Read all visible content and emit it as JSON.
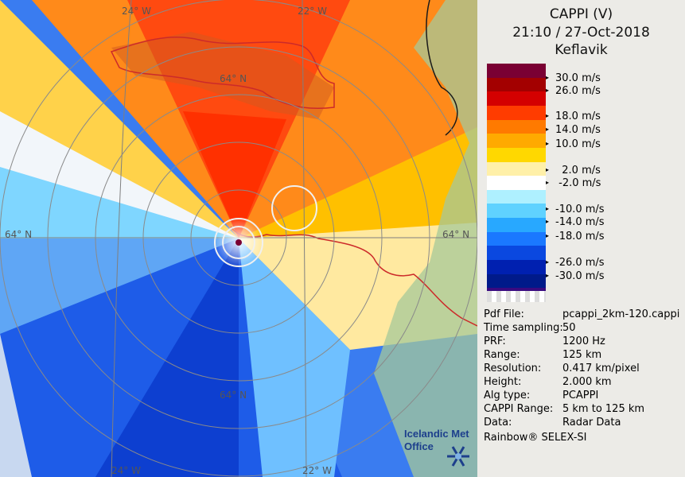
{
  "header": {
    "product": "CAPPI (V)",
    "datetime": "21:10 / 27-Oct-2018",
    "station": "Keflavik"
  },
  "map": {
    "grid_labels": [
      "24° W",
      "22° W",
      "64° N",
      "64° N",
      "64° N",
      "24° W",
      "22° W",
      "64° N"
    ],
    "range_rings_km": [
      25,
      50,
      75,
      100,
      125
    ],
    "radar_center": "Keflavik"
  },
  "scale": {
    "unit": "m/s",
    "bands": [
      {
        "color": "#7a0033"
      },
      {
        "color": "#a30000"
      },
      {
        "color": "#d40000"
      },
      {
        "color": "#ff3c00"
      },
      {
        "color": "#ff7a00"
      },
      {
        "color": "#ffaa00"
      },
      {
        "color": "#ffd800"
      },
      {
        "color": "#fff0a8"
      },
      {
        "color": "#ffffff"
      },
      {
        "color": "#aef0ff"
      },
      {
        "color": "#5fd2ff"
      },
      {
        "color": "#28a8ff"
      },
      {
        "color": "#1a78ff"
      },
      {
        "color": "#0a48e0"
      },
      {
        "color": "#0020b0"
      },
      {
        "color": "#001a8a"
      },
      {
        "color": "#3a0a80"
      }
    ],
    "labels": [
      "30.0 m/s",
      "26.0 m/s",
      "18.0 m/s",
      "14.0 m/s",
      "10.0 m/s",
      "  2.0 m/s",
      " -2.0 m/s",
      "-10.0 m/s",
      "-14.0 m/s",
      "-18.0 m/s",
      "-26.0 m/s",
      "-30.0 m/s"
    ]
  },
  "info": [
    {
      "key": "Pdf File:",
      "value": "pcappi_2km-120.cappi"
    },
    {
      "key": "Time sampling:",
      "value": "50"
    },
    {
      "key": "PRF:",
      "value": "1200 Hz"
    },
    {
      "key": "Range:",
      "value": "125 km"
    },
    {
      "key": "Resolution:",
      "value": "0.417 km/pixel"
    },
    {
      "key": "Height:",
      "value": "2.000 km"
    },
    {
      "key": "Alg type:",
      "value": "PCAPPI"
    },
    {
      "key": "CAPPI Range:",
      "value": "5 km to 125 km"
    },
    {
      "key": "Data:",
      "value": "Radar Data"
    }
  ],
  "footer": "Rainbow® SELEX-SI",
  "logo": {
    "line1": "Icelandic Met",
    "line2": "Office"
  },
  "colors": {
    "panel_bg": "#ecebe7",
    "land": "#a6c89a",
    "coast": "#cc2a2a",
    "grid": "#7f7f7f"
  }
}
